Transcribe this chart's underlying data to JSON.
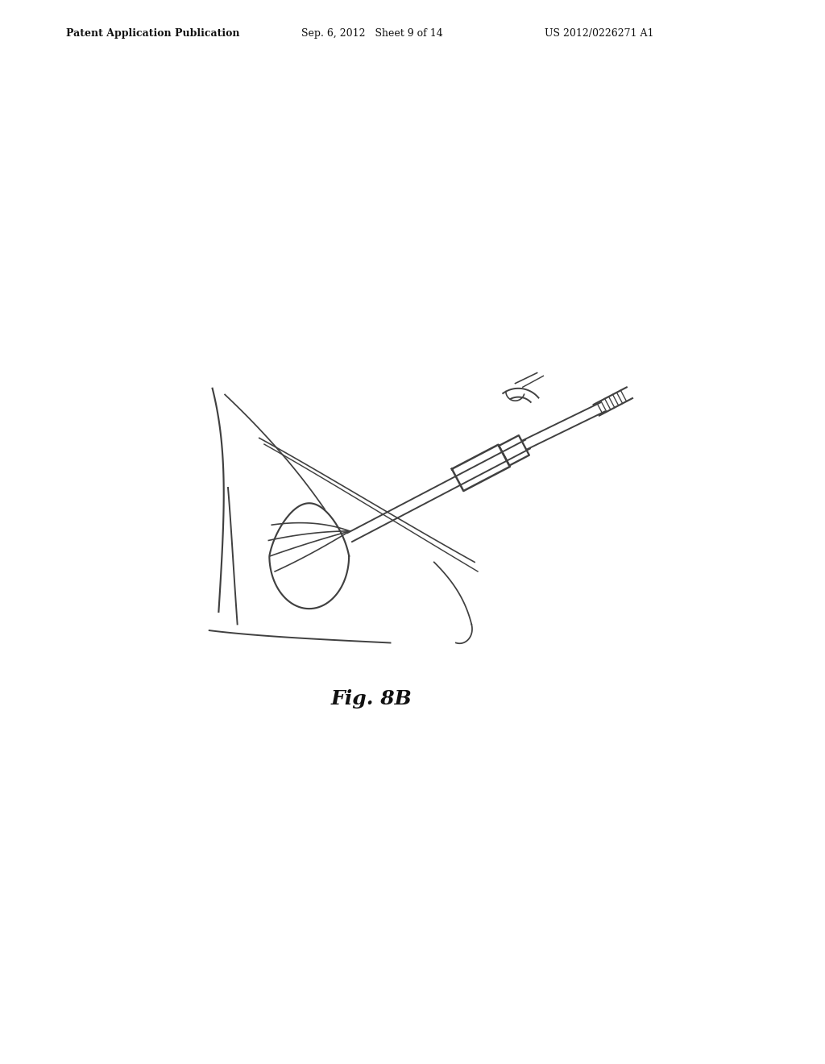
{
  "background_color": "#ffffff",
  "line_color": "#404040",
  "line_width": 1.4,
  "fig_width": 10.24,
  "fig_height": 13.2,
  "header_left": "Patent Application Publication",
  "header_center": "Sep. 6, 2012   Sheet 9 of 14",
  "header_right": "US 2012/0226271 A1",
  "caption": "Fig. 8B"
}
